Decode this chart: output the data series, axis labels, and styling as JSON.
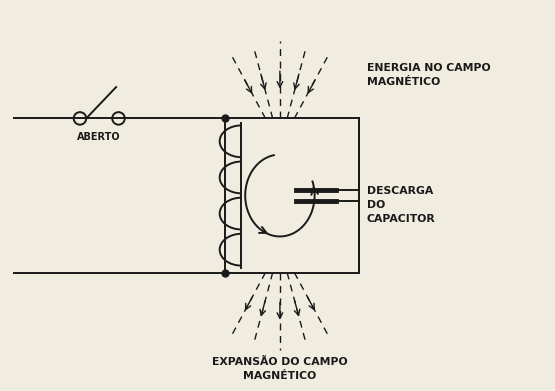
{
  "bg_color": "#f0ece0",
  "line_color": "#1a1a1a",
  "text_energia": "ENERGIA NO CAMPO\nMAGNÉTICO",
  "text_expansao": "EXPANSÃO DO CAMPO\nMAGNÉTICO",
  "text_descarga": "DESCARGA\nDO\nCAPACITOR",
  "text_aberto": "ABERTO",
  "xlim": [
    0,
    11
  ],
  "ylim": [
    0,
    8
  ]
}
